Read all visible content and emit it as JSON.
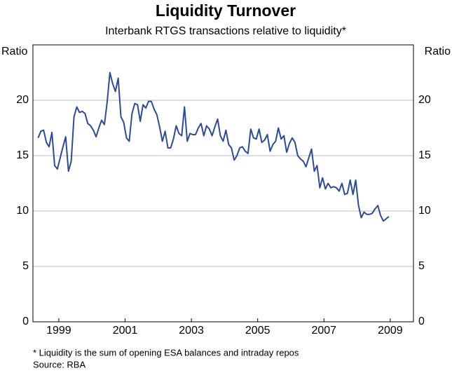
{
  "chart_data": {
    "type": "line",
    "title": "Liquidity Turnover",
    "subtitle": "Interbank RTGS transactions relative to liquidity*",
    "ylabel": "Ratio",
    "y2label": "Ratio",
    "notes": [
      "* Liquidity is the sum of opening ESA balances and intraday repos",
      "Source: RBA"
    ],
    "x": [
      1998.375,
      1998.458,
      1998.542,
      1998.625,
      1998.708,
      1998.792,
      1998.875,
      1998.958,
      1999.042,
      1999.125,
      1999.208,
      1999.292,
      1999.375,
      1999.458,
      1999.542,
      1999.625,
      1999.708,
      1999.792,
      1999.875,
      1999.958,
      2000.042,
      2000.125,
      2000.208,
      2000.292,
      2000.375,
      2000.458,
      2000.542,
      2000.625,
      2000.708,
      2000.792,
      2000.875,
      2000.958,
      2001.042,
      2001.125,
      2001.208,
      2001.292,
      2001.375,
      2001.458,
      2001.542,
      2001.625,
      2001.708,
      2001.792,
      2001.875,
      2001.958,
      2002.042,
      2002.125,
      2002.208,
      2002.292,
      2002.375,
      2002.458,
      2002.542,
      2002.625,
      2002.708,
      2002.792,
      2002.875,
      2002.958,
      2003.042,
      2003.125,
      2003.208,
      2003.292,
      2003.375,
      2003.458,
      2003.542,
      2003.625,
      2003.708,
      2003.792,
      2003.875,
      2003.958,
      2004.042,
      2004.125,
      2004.208,
      2004.292,
      2004.375,
      2004.458,
      2004.542,
      2004.625,
      2004.708,
      2004.792,
      2004.875,
      2004.958,
      2005.042,
      2005.125,
      2005.208,
      2005.292,
      2005.375,
      2005.458,
      2005.542,
      2005.625,
      2005.708,
      2005.792,
      2005.875,
      2005.958,
      2006.042,
      2006.125,
      2006.208,
      2006.292,
      2006.375,
      2006.458,
      2006.542,
      2006.625,
      2006.708,
      2006.792,
      2006.875,
      2006.958,
      2007.042,
      2007.125,
      2007.208,
      2007.292,
      2007.375,
      2007.458,
      2007.542,
      2007.625,
      2007.708,
      2007.792,
      2007.875,
      2007.958,
      2008.042,
      2008.125,
      2008.208,
      2008.292,
      2008.375,
      2008.458,
      2008.542,
      2008.625,
      2008.708,
      2008.792,
      2008.875,
      2008.958
    ],
    "series": [
      {
        "name": "Liquidity turnover",
        "color": "#2b4b9b",
        "values": [
          16.6,
          17.2,
          17.3,
          16.2,
          15.8,
          17.1,
          14.1,
          13.8,
          14.8,
          15.8,
          16.7,
          13.6,
          14.5,
          18.5,
          19.4,
          18.9,
          19.0,
          18.8,
          17.9,
          17.7,
          17.3,
          16.7,
          17.5,
          18.2,
          17.8,
          19.8,
          22.5,
          21.5,
          20.8,
          22.0,
          18.5,
          18.0,
          16.6,
          16.3,
          18.8,
          19.7,
          19.6,
          18.1,
          19.6,
          19.3,
          19.9,
          19.9,
          19.2,
          18.7,
          17.6,
          16.3,
          17.2,
          15.7,
          15.7,
          16.5,
          17.7,
          17.0,
          16.8,
          19.4,
          16.3,
          17.0,
          16.9,
          16.9,
          17.5,
          17.9,
          16.8,
          17.7,
          17.4,
          16.8,
          17.6,
          18.3,
          16.8,
          16.3,
          17.3,
          16.0,
          15.7,
          14.6,
          15.0,
          15.7,
          15.8,
          15.4,
          15.2,
          17.4,
          16.6,
          16.5,
          17.4,
          16.2,
          16.4,
          16.9,
          15.4,
          16.0,
          16.3,
          17.5,
          16.5,
          16.8,
          15.3,
          16.1,
          16.6,
          16.2,
          15.0,
          14.7,
          14.5,
          14.0,
          14.8,
          15.6,
          13.6,
          14.1,
          12.1,
          13.0,
          12.0,
          12.5,
          12.1,
          12.2,
          12.1,
          11.8,
          12.5,
          11.5,
          11.6,
          12.8,
          11.5,
          12.8,
          10.5,
          9.4,
          9.9,
          9.7,
          9.7,
          9.8,
          10.2,
          10.5,
          9.6,
          9.1,
          9.3,
          9.5
        ]
      }
    ],
    "xlim": [
      1998.22,
      2009.7
    ],
    "xticks": [
      1999,
      2001,
      2003,
      2005,
      2007,
      2009
    ],
    "ylim": [
      0,
      25
    ],
    "yticks": [
      0,
      5,
      10,
      15,
      20
    ],
    "y2lim": [
      0,
      25
    ],
    "y2ticks": [
      0,
      5,
      10,
      15,
      20
    ],
    "grid": true
  }
}
